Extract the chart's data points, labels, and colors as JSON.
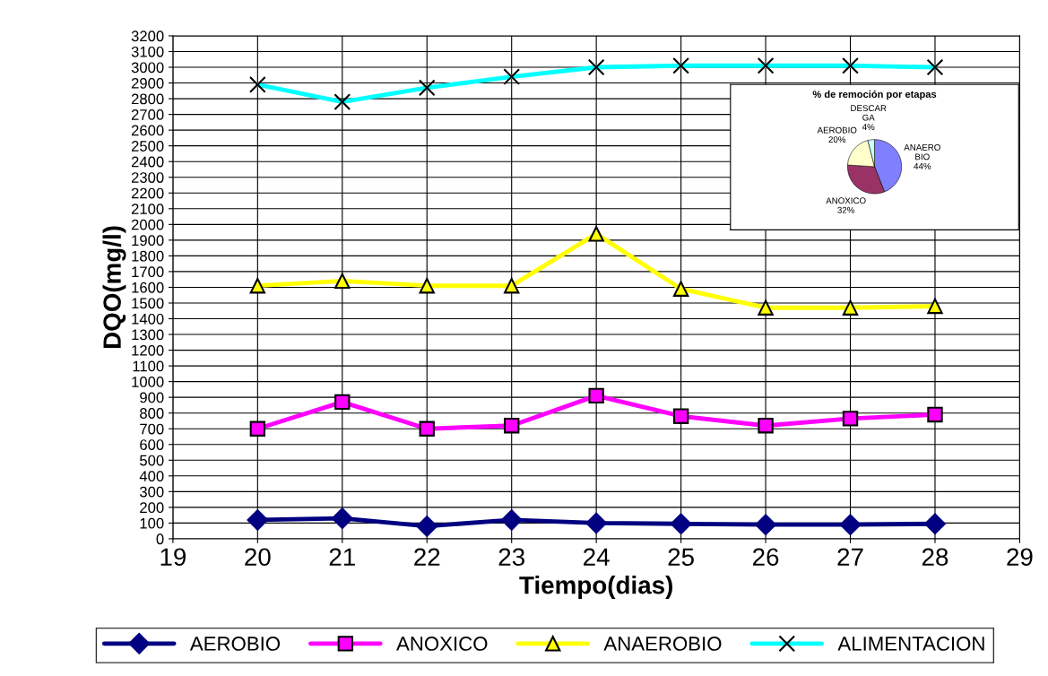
{
  "chart_data": [
    {
      "type": "line",
      "xlabel": "Tiempo(dias)",
      "ylabel": "DQO(mg/l)",
      "x": [
        20,
        21,
        22,
        23,
        24,
        25,
        26,
        27,
        28
      ],
      "xlim": [
        19,
        29
      ],
      "xticks": [
        19,
        20,
        21,
        22,
        23,
        24,
        25,
        26,
        27,
        28,
        29
      ],
      "ylim": [
        0,
        3200
      ],
      "yticks": [
        0,
        100,
        200,
        300,
        400,
        500,
        600,
        700,
        800,
        900,
        1000,
        1100,
        1200,
        1300,
        1400,
        1500,
        1600,
        1700,
        1800,
        1900,
        2000,
        2100,
        2200,
        2300,
        2400,
        2500,
        2600,
        2700,
        2800,
        2900,
        3000,
        3100,
        3200
      ],
      "grid": true,
      "legend": "bottom",
      "series": [
        {
          "name": "AEROBIO",
          "color": "#000080",
          "marker": "diamond",
          "values": [
            120,
            130,
            80,
            120,
            100,
            95,
            90,
            90,
            95
          ]
        },
        {
          "name": "ANOXICO",
          "color": "#ff00ff",
          "marker": "square",
          "values": [
            700,
            870,
            700,
            720,
            910,
            780,
            720,
            765,
            790
          ]
        },
        {
          "name": "ANAEROBIO",
          "color": "#ffff00",
          "marker": "triangle",
          "values": [
            1610,
            1640,
            1610,
            1610,
            1940,
            1590,
            1470,
            1470,
            1480
          ]
        },
        {
          "name": "ALIMENTACION",
          "color": "#00ffff",
          "marker": "cross",
          "values": [
            2890,
            2780,
            2870,
            2940,
            3000,
            3010,
            3010,
            3010,
            3000
          ]
        }
      ]
    },
    {
      "type": "pie",
      "title": "% de remoción por etapas",
      "categories": [
        "ANAERO\nBIO",
        "ANOXICO",
        "AEROBIO",
        "DESCAR\nGA"
      ],
      "values": [
        44,
        32,
        20,
        4
      ],
      "value_labels": [
        "44%",
        "32%",
        "20%",
        "4%"
      ],
      "colors": [
        "#8080ff",
        "#993366",
        "#ffffcc",
        "#ccffff"
      ]
    }
  ]
}
